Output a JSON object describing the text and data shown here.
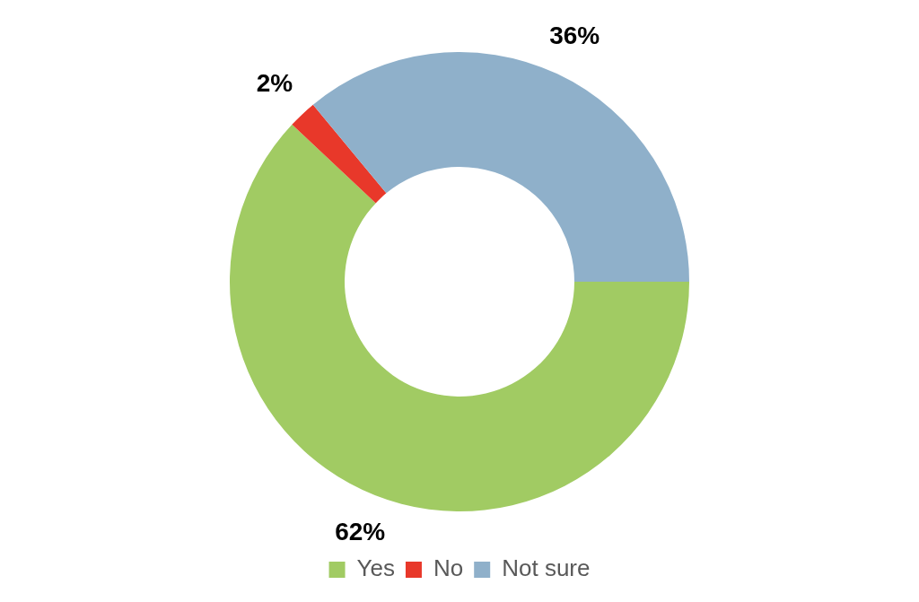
{
  "chart_data": {
    "type": "donut",
    "categories": [
      "Yes",
      "No",
      "Not sure"
    ],
    "values": [
      62,
      2,
      36
    ],
    "colors": [
      "#a1cb63",
      "#e8382a",
      "#8fb0ca"
    ],
    "value_labels": [
      "62%",
      "2%",
      "36%"
    ],
    "legend": "bottom"
  }
}
